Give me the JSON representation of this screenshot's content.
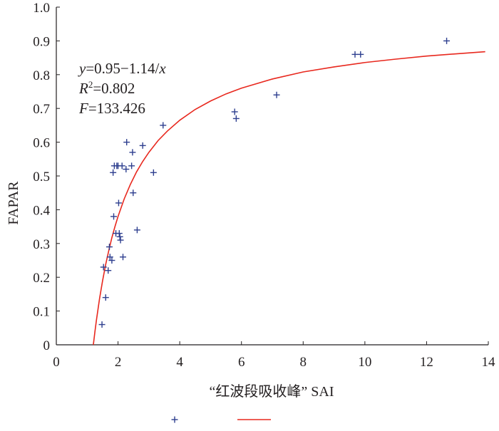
{
  "chart_data": {
    "type": "scatter",
    "xlabel": "“红波段吸收峰” SAI",
    "ylabel": "FAPAR",
    "xlim": [
      0,
      14
    ],
    "ylim": [
      0,
      1.0
    ],
    "x_ticks": [
      "0",
      "2",
      "4",
      "6",
      "8",
      "10",
      "12",
      "14"
    ],
    "y_ticks": [
      "0",
      "0.1",
      "0.2",
      "0.3",
      "0.4",
      "0.5",
      "0.6",
      "0.7",
      "0.8",
      "0.9",
      "1.0"
    ],
    "grid": false,
    "series": [
      {
        "type": "scatter",
        "marker": "+",
        "color": "#2e3f8f",
        "points": [
          [
            1.48,
            0.06
          ],
          [
            1.53,
            0.23
          ],
          [
            1.6,
            0.14
          ],
          [
            1.68,
            0.22
          ],
          [
            1.72,
            0.29
          ],
          [
            1.74,
            0.26
          ],
          [
            1.8,
            0.25
          ],
          [
            1.84,
            0.51
          ],
          [
            1.86,
            0.38
          ],
          [
            1.88,
            0.53
          ],
          [
            1.93,
            0.33
          ],
          [
            1.96,
            0.53
          ],
          [
            2.0,
            0.53
          ],
          [
            2.02,
            0.42
          ],
          [
            2.04,
            0.33
          ],
          [
            2.06,
            0.32
          ],
          [
            2.08,
            0.31
          ],
          [
            2.13,
            0.53
          ],
          [
            2.16,
            0.26
          ],
          [
            2.26,
            0.52
          ],
          [
            2.28,
            0.6
          ],
          [
            2.44,
            0.53
          ],
          [
            2.47,
            0.57
          ],
          [
            2.49,
            0.45
          ],
          [
            2.62,
            0.34
          ],
          [
            2.8,
            0.59
          ],
          [
            3.15,
            0.51
          ],
          [
            3.46,
            0.65
          ],
          [
            5.78,
            0.69
          ],
          [
            5.83,
            0.67
          ],
          [
            7.14,
            0.74
          ],
          [
            9.68,
            0.86
          ],
          [
            9.86,
            0.86
          ],
          [
            12.65,
            0.9
          ]
        ]
      },
      {
        "type": "line",
        "color": "#e8281e",
        "x": [
          1.2,
          1.25,
          1.3,
          1.4,
          1.5,
          1.6,
          1.7,
          1.8,
          1.9,
          2.0,
          2.2,
          2.4,
          2.6,
          2.8,
          3.0,
          3.3,
          3.6,
          4.0,
          4.5,
          5.0,
          5.5,
          6.0,
          7.0,
          8.0,
          9.0,
          10.0,
          11.0,
          12.0,
          13.0,
          13.9
        ],
        "y": [
          0.0,
          0.038,
          0.073,
          0.136,
          0.19,
          0.238,
          0.279,
          0.317,
          0.35,
          0.38,
          0.432,
          0.475,
          0.512,
          0.543,
          0.57,
          0.605,
          0.633,
          0.665,
          0.697,
          0.722,
          0.743,
          0.76,
          0.787,
          0.808,
          0.823,
          0.836,
          0.846,
          0.855,
          0.862,
          0.868
        ]
      }
    ],
    "equation": {
      "line1_var": "y",
      "line1_text": "=0.95−1.14/",
      "line1_var2": "x",
      "line2_var": "R",
      "line2_sup": "2",
      "line2_text": "=0.802",
      "line3_var": "F",
      "line3_text": "=133.426"
    },
    "legend": {
      "placement": "bottom-center",
      "entries": [
        {
          "marker": "+",
          "color": "#2e3f8f"
        },
        {
          "marker": "line",
          "color": "#e8281e"
        }
      ]
    }
  }
}
